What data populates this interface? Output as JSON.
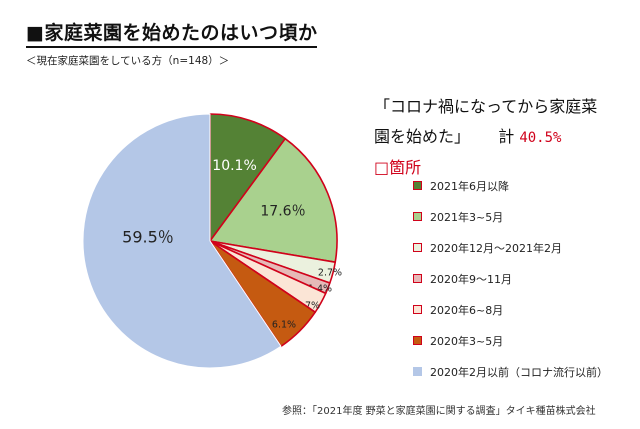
{
  "title": "■家庭菜園を始めたのはいつ頃か",
  "subtitle": "＜現在家庭菜園をしている方（n=148）＞",
  "callout": {
    "line1": "「コロナ禍になってから家庭菜",
    "line2": "園を始めた」",
    "total_label": "計",
    "total_value": "40.5%",
    "highlight": "□箇所"
  },
  "source": "参照：「2021年度 野菜と家庭菜園に関する調査」タイキ種苗株式会社",
  "chart_data": {
    "type": "pie",
    "start_angle_deg": 0,
    "direction": "clockwise",
    "slices": [
      {
        "label": "2021年6月以降",
        "value": 10.1,
        "display": "10.1%",
        "color": "#548235",
        "highlighted": true
      },
      {
        "label": "2021年3~5月",
        "value": 17.6,
        "display": "17.6％",
        "color": "#a9d18e",
        "highlighted": true
      },
      {
        "label": "2020年12月～2021年2月",
        "value": 2.7,
        "display": "2.7%",
        "color": "#ebf1de",
        "highlighted": true
      },
      {
        "label": "2020年9～11月",
        "value": 1.4,
        "display": "1.4%",
        "color": "#e6b9b8",
        "highlighted": true
      },
      {
        "label": "2020年6~8月",
        "value": 2.7,
        "display": "2.7%",
        "color": "#fbe5d6",
        "highlighted": true
      },
      {
        "label": "2020年3~5月",
        "value": 6.1,
        "display": "6.1%",
        "color": "#c55a11",
        "highlighted": true
      },
      {
        "label": "2020年2月以前（コロナ流行以前）",
        "value": 59.5,
        "display": "59.5％",
        "color": "#b4c7e7",
        "highlighted": false
      }
    ],
    "highlight_border_color": "#d0021b"
  }
}
